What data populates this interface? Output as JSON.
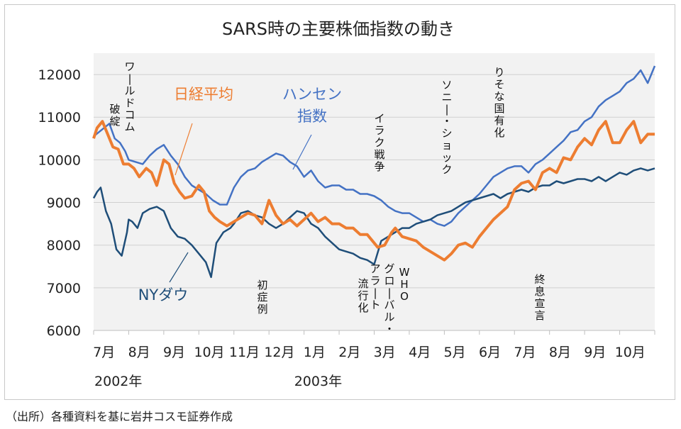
{
  "chart_data": {
    "type": "line",
    "title": "SARS時の主要株価指数の動き",
    "ylim": [
      6000,
      12500
    ],
    "yticks": [
      6000,
      7000,
      8000,
      9000,
      10000,
      11000,
      12000
    ],
    "xticks": [
      "7月",
      "8月",
      "9月",
      "10月",
      "11月",
      "12月",
      "1月",
      "2月",
      "3月",
      "4月",
      "5月",
      "6月",
      "7月",
      "8月",
      "9月",
      "10月"
    ],
    "years": [
      "2002年",
      "2003年"
    ],
    "x_unit": "month index (0 = start of 7月 2002)",
    "xlim": [
      0,
      16
    ],
    "series": [
      {
        "name": "日経平均",
        "color": "#ed7d31",
        "x": [
          0,
          0.1,
          0.25,
          0.4,
          0.55,
          0.7,
          0.85,
          1.0,
          1.15,
          1.3,
          1.5,
          1.65,
          1.8,
          2.0,
          2.15,
          2.3,
          2.45,
          2.6,
          2.8,
          3.0,
          3.15,
          3.3,
          3.45,
          3.6,
          3.8,
          4.0,
          4.2,
          4.4,
          4.6,
          4.8,
          5.0,
          5.2,
          5.4,
          5.6,
          5.8,
          6.0,
          6.2,
          6.4,
          6.6,
          6.8,
          7.0,
          7.2,
          7.4,
          7.6,
          7.8,
          8.0,
          8.1,
          8.3,
          8.5,
          8.6,
          8.8,
          9.0,
          9.2,
          9.4,
          9.6,
          9.8,
          10.0,
          10.2,
          10.4,
          10.6,
          10.8,
          11.0,
          11.2,
          11.4,
          11.6,
          11.8,
          12.0,
          12.2,
          12.4,
          12.6,
          12.8,
          13.0,
          13.2,
          13.4,
          13.6,
          13.8,
          14.0,
          14.2,
          14.4,
          14.6,
          14.8,
          15.0,
          15.2,
          15.4,
          15.6,
          15.8,
          16.0
        ],
        "values": [
          10500,
          10750,
          10900,
          10600,
          10300,
          10250,
          9900,
          9900,
          9800,
          9600,
          9800,
          9700,
          9400,
          10000,
          9900,
          9450,
          9250,
          9100,
          9150,
          9400,
          9250,
          8800,
          8650,
          8550,
          8450,
          8550,
          8650,
          8750,
          8700,
          8500,
          9050,
          8700,
          8500,
          8600,
          8450,
          8600,
          8750,
          8550,
          8650,
          8500,
          8500,
          8400,
          8400,
          8250,
          8250,
          8050,
          7950,
          8000,
          8300,
          8400,
          8200,
          8150,
          8100,
          7950,
          7850,
          7750,
          7650,
          7800,
          8000,
          8050,
          7950,
          8200,
          8400,
          8600,
          8750,
          8900,
          9300,
          9450,
          9500,
          9300,
          9700,
          9800,
          9700,
          10050,
          10000,
          10300,
          10500,
          10350,
          10700,
          10900,
          10400,
          10400,
          10700,
          10900,
          10400,
          10600,
          10600
        ]
      },
      {
        "name": "ハンセン指数",
        "color": "#4472c4",
        "x": [
          0,
          0.15,
          0.3,
          0.45,
          0.6,
          0.75,
          0.9,
          1.0,
          1.2,
          1.4,
          1.6,
          1.8,
          2.0,
          2.2,
          2.4,
          2.6,
          2.8,
          3.0,
          3.2,
          3.4,
          3.6,
          3.8,
          4.0,
          4.2,
          4.4,
          4.6,
          4.8,
          5.0,
          5.2,
          5.4,
          5.6,
          5.8,
          6.0,
          6.2,
          6.4,
          6.6,
          6.8,
          7.0,
          7.2,
          7.4,
          7.6,
          7.8,
          8.0,
          8.2,
          8.4,
          8.6,
          8.8,
          9.0,
          9.2,
          9.4,
          9.6,
          9.8,
          10.0,
          10.2,
          10.4,
          10.6,
          10.8,
          11.0,
          11.2,
          11.4,
          11.6,
          11.8,
          12.0,
          12.2,
          12.4,
          12.6,
          12.8,
          13.0,
          13.2,
          13.4,
          13.6,
          13.8,
          14.0,
          14.2,
          14.4,
          14.6,
          14.8,
          15.0,
          15.2,
          15.4,
          15.6,
          15.8,
          16.0
        ],
        "values": [
          10550,
          10650,
          10750,
          10850,
          10500,
          10400,
          10200,
          10000,
          9950,
          9900,
          10100,
          10250,
          10350,
          10100,
          9900,
          9600,
          9400,
          9300,
          9200,
          9050,
          8950,
          8950,
          9350,
          9600,
          9750,
          9800,
          9950,
          10050,
          10150,
          10100,
          9950,
          9850,
          9600,
          9750,
          9500,
          9350,
          9400,
          9400,
          9300,
          9300,
          9200,
          9200,
          9150,
          9050,
          8900,
          8800,
          8750,
          8750,
          8650,
          8550,
          8600,
          8500,
          8450,
          8550,
          8750,
          8900,
          9050,
          9200,
          9400,
          9600,
          9700,
          9800,
          9850,
          9850,
          9700,
          9900,
          10000,
          10150,
          10300,
          10450,
          10650,
          10700,
          10900,
          11000,
          11250,
          11400,
          11500,
          11600,
          11800,
          11900,
          12100,
          11800,
          12200
        ]
      },
      {
        "name": "NYダウ",
        "color": "#1f4e79",
        "x": [
          0,
          0.1,
          0.2,
          0.35,
          0.5,
          0.65,
          0.8,
          0.95,
          1.0,
          1.1,
          1.25,
          1.4,
          1.6,
          1.8,
          2.0,
          2.2,
          2.4,
          2.6,
          2.8,
          3.0,
          3.2,
          3.35,
          3.5,
          3.7,
          3.9,
          4.0,
          4.2,
          4.4,
          4.6,
          4.8,
          5.0,
          5.2,
          5.4,
          5.6,
          5.8,
          6.0,
          6.2,
          6.4,
          6.6,
          6.8,
          7.0,
          7.2,
          7.4,
          7.6,
          7.8,
          8.0,
          8.2,
          8.4,
          8.6,
          8.8,
          9.0,
          9.2,
          9.4,
          9.6,
          9.8,
          10.0,
          10.2,
          10.4,
          10.6,
          10.8,
          11.0,
          11.2,
          11.4,
          11.6,
          11.8,
          12.0,
          12.2,
          12.4,
          12.6,
          12.8,
          13.0,
          13.2,
          13.4,
          13.6,
          13.8,
          14.0,
          14.2,
          14.4,
          14.6,
          14.8,
          15.0,
          15.2,
          15.4,
          15.6,
          15.8,
          16.0
        ],
        "values": [
          9100,
          9250,
          9350,
          8800,
          8500,
          7900,
          7750,
          8300,
          8600,
          8550,
          8400,
          8750,
          8850,
          8900,
          8800,
          8400,
          8200,
          8150,
          8000,
          7800,
          7600,
          7250,
          8050,
          8300,
          8400,
          8500,
          8750,
          8800,
          8700,
          8650,
          8500,
          8400,
          8500,
          8650,
          8800,
          8750,
          8500,
          8400,
          8200,
          8050,
          7900,
          7850,
          7800,
          7700,
          7650,
          7550,
          8100,
          8200,
          8300,
          8400,
          8400,
          8500,
          8550,
          8600,
          8700,
          8750,
          8800,
          8900,
          9000,
          9050,
          9100,
          9150,
          9200,
          9100,
          9200,
          9250,
          9300,
          9250,
          9350,
          9400,
          9400,
          9500,
          9450,
          9500,
          9550,
          9550,
          9500,
          9600,
          9500,
          9600,
          9700,
          9650,
          9750,
          9800,
          9750,
          9800
        ]
      }
    ],
    "legend_labels": [
      {
        "text": "日経平均",
        "series": "日経平均"
      },
      {
        "text": "ハンセン\n指数",
        "series": "ハンセン指数"
      },
      {
        "text": "NYダウ",
        "series": "NYダウ"
      }
    ],
    "annotations": [
      {
        "text": "ワールドコム\n破綻"
      },
      {
        "text": "初\n症\n例"
      },
      {
        "text": "イラク戦争"
      },
      {
        "text": "流\n行\n化"
      },
      {
        "text": "アラート"
      },
      {
        "text": "グローバル・"
      },
      {
        "text": "WHO"
      },
      {
        "text": "ソニー・ショック"
      },
      {
        "text": "りそな国有化"
      },
      {
        "text": "終\n息\n宣\n言"
      }
    ]
  },
  "source_note": "（出所）各種資料を基に岩井コスモ証券作成"
}
